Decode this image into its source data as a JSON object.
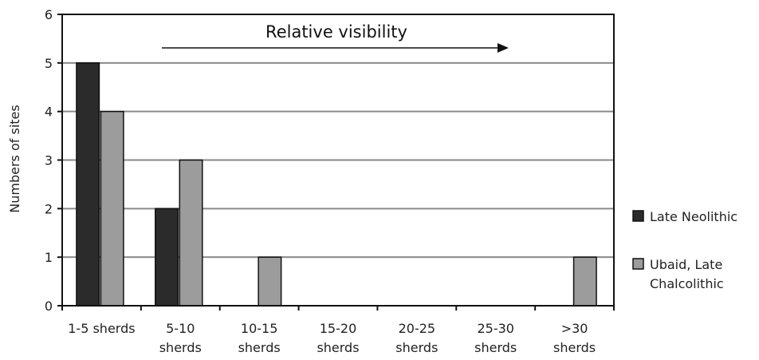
{
  "chart_data": {
    "type": "bar",
    "ylabel": "Numbers of sites",
    "ylim": [
      0,
      6
    ],
    "yticks": [
      "0",
      "1",
      "2",
      "3",
      "4",
      "5",
      "6"
    ],
    "categories": [
      [
        "1-5 sherds"
      ],
      [
        "5-10",
        "sherds"
      ],
      [
        "10-15",
        "sherds"
      ],
      [
        "15-20",
        "sherds"
      ],
      [
        "20-25",
        "sherds"
      ],
      [
        "25-30",
        "sherds"
      ],
      [
        ">30",
        "sherds"
      ]
    ],
    "series": [
      {
        "name": [
          "Late Neolithic"
        ],
        "color": "#2b2b2b",
        "values": [
          5,
          2,
          0,
          0,
          0,
          0,
          0
        ]
      },
      {
        "name": [
          "Ubaid, Late",
          "Chalcolithic"
        ],
        "color": "#9c9c9c",
        "values": [
          4,
          3,
          1,
          0,
          0,
          0,
          1
        ]
      }
    ],
    "annotation": "Relative visibility",
    "grid": true,
    "legend_position": "right"
  }
}
